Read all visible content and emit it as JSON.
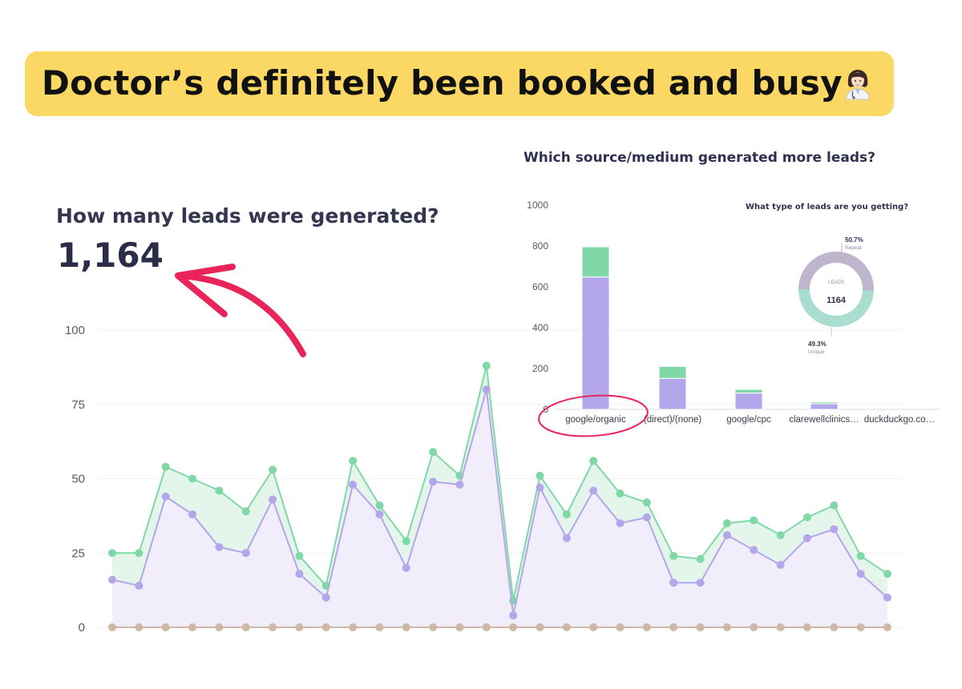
{
  "banner": {
    "title": "Doctor’s definitely been booked and busy",
    "icon": "woman-doctor-icon",
    "color": "#fbd863"
  },
  "leads": {
    "heading": "How many leads were generated?",
    "total": "1,164"
  },
  "source_chart_heading": "Which source/medium generated more leads?",
  "type_chart_heading": "What type of leads are you getting?",
  "colors": {
    "green": "#7fd8a6",
    "purple": "#b3a6ea",
    "baseline": "#cdb8a8",
    "donut_repeat": "#bfb5cc",
    "donut_unique": "#a8ddd0",
    "annotation": "#e8245b"
  },
  "chart_data": [
    {
      "type": "line",
      "ylim": [
        0,
        100
      ],
      "yticks": [
        "0",
        "25",
        "50",
        "75",
        "100"
      ],
      "grid": true,
      "series": [
        {
          "color": "#7fd8a6",
          "values": [
            25,
            25,
            54,
            50,
            46,
            39,
            53,
            24,
            14,
            56,
            41,
            29,
            59,
            51,
            88,
            9,
            51,
            38,
            56,
            45,
            42,
            24,
            23,
            35,
            36,
            31,
            37,
            41,
            24,
            18
          ]
        },
        {
          "color": "#b3a6ea",
          "values": [
            16,
            14,
            44,
            38,
            27,
            25,
            43,
            18,
            10,
            48,
            38,
            20,
            49,
            48,
            80,
            4,
            47,
            30,
            46,
            35,
            37,
            15,
            15,
            31,
            26,
            21,
            30,
            33,
            18,
            10
          ]
        },
        {
          "color": "#cdb8a8",
          "values": [
            0,
            0,
            0,
            0,
            0,
            0,
            0,
            0,
            0,
            0,
            0,
            0,
            0,
            0,
            0,
            0,
            0,
            0,
            0,
            0,
            0,
            0,
            0,
            0,
            0,
            0,
            0,
            0,
            0,
            0
          ]
        }
      ]
    },
    {
      "type": "bar",
      "stacked": true,
      "ylim": [
        0,
        1000
      ],
      "yticks": [
        "0",
        "200",
        "400",
        "600",
        "800",
        "1000"
      ],
      "categories": [
        "google/organic",
        "(direct)/(none)",
        "google/cpc",
        "clarewellclinics…",
        "duckduckgo.co…"
      ],
      "series": [
        {
          "color": "#b3a6ea",
          "values": [
            648,
            152,
            80,
            28,
            0
          ]
        },
        {
          "color": "#7fd8a6",
          "values": [
            148,
            58,
            18,
            8,
            0
          ]
        }
      ]
    },
    {
      "type": "pie",
      "center_label": "LEADS",
      "center_value": "1164",
      "slices": [
        {
          "label": "Repeat",
          "percent_label": "50.7%",
          "value": 50.7,
          "color": "#bfb5cc"
        },
        {
          "label": "Unique",
          "percent_label": "49.3%",
          "value": 49.3,
          "color": "#a8ddd0"
        }
      ]
    }
  ]
}
